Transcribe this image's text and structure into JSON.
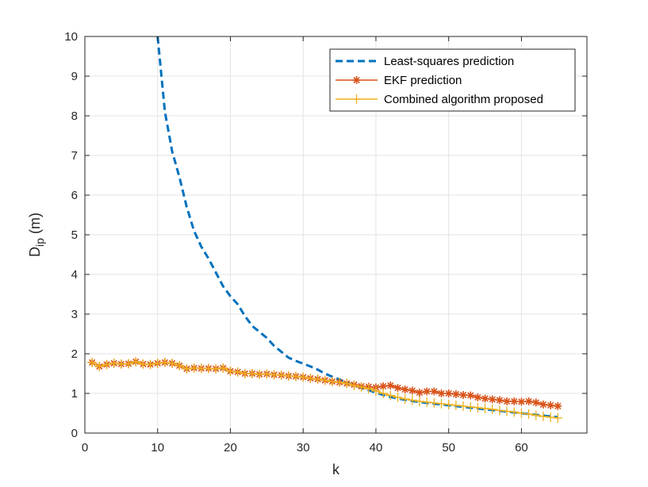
{
  "chart_data": {
    "type": "line",
    "title": "",
    "xlabel": "k",
    "ylabel": {
      "main": "D",
      "sub": "ip",
      "unit": " (m)"
    },
    "xlim": [
      0,
      69
    ],
    "ylim": [
      0,
      10
    ],
    "xticks": [
      0,
      10,
      20,
      30,
      40,
      50,
      60
    ],
    "yticks": [
      0,
      1,
      2,
      3,
      4,
      5,
      6,
      7,
      8,
      9,
      10
    ],
    "grid": true,
    "legend_position": "top-right",
    "series": [
      {
        "name": "Least-squares prediction",
        "color": "#0072BD",
        "line_style": "dashed",
        "marker": "none",
        "x": [
          10,
          11,
          12,
          13,
          14,
          15,
          16,
          17,
          18,
          19,
          20,
          21,
          22,
          23,
          24,
          25,
          26,
          27,
          28,
          29,
          30,
          31,
          32,
          33,
          34,
          35,
          36,
          37,
          38,
          39,
          40,
          41,
          42,
          43,
          44,
          45,
          46,
          47,
          48,
          49,
          50,
          51,
          52,
          53,
          54,
          55,
          56,
          57,
          58,
          59,
          60,
          61,
          62,
          63,
          64,
          65
        ],
        "y": [
          10.0,
          8.1,
          7.1,
          6.45,
          5.7,
          5.1,
          4.7,
          4.4,
          4.05,
          3.7,
          3.45,
          3.25,
          2.95,
          2.7,
          2.55,
          2.4,
          2.2,
          2.05,
          1.9,
          1.82,
          1.75,
          1.68,
          1.6,
          1.5,
          1.42,
          1.35,
          1.28,
          1.2,
          1.14,
          1.08,
          1.02,
          0.96,
          0.91,
          0.87,
          0.84,
          0.81,
          0.78,
          0.76,
          0.74,
          0.72,
          0.7,
          0.68,
          0.66,
          0.64,
          0.62,
          0.6,
          0.58,
          0.56,
          0.54,
          0.52,
          0.5,
          0.48,
          0.46,
          0.44,
          0.42,
          0.4
        ]
      },
      {
        "name": "EKF prediction",
        "color": "#D95319",
        "line_style": "solid",
        "marker": "asterisk",
        "x": [
          1,
          2,
          3,
          4,
          5,
          6,
          7,
          8,
          9,
          10,
          11,
          12,
          13,
          14,
          15,
          16,
          17,
          18,
          19,
          20,
          21,
          22,
          23,
          24,
          25,
          26,
          27,
          28,
          29,
          30,
          31,
          32,
          33,
          34,
          35,
          36,
          37,
          38,
          39,
          40,
          41,
          42,
          43,
          44,
          45,
          46,
          47,
          48,
          49,
          50,
          51,
          52,
          53,
          54,
          55,
          56,
          57,
          58,
          59,
          60,
          61,
          62,
          63,
          64,
          65
        ],
        "y": [
          1.78,
          1.68,
          1.73,
          1.76,
          1.74,
          1.75,
          1.8,
          1.74,
          1.73,
          1.76,
          1.78,
          1.76,
          1.7,
          1.62,
          1.64,
          1.63,
          1.63,
          1.62,
          1.64,
          1.56,
          1.54,
          1.5,
          1.5,
          1.48,
          1.49,
          1.47,
          1.46,
          1.44,
          1.43,
          1.41,
          1.38,
          1.36,
          1.33,
          1.3,
          1.28,
          1.25,
          1.22,
          1.18,
          1.17,
          1.15,
          1.18,
          1.2,
          1.14,
          1.1,
          1.07,
          1.02,
          1.05,
          1.05,
          1.0,
          1.0,
          0.98,
          0.96,
          0.95,
          0.9,
          0.87,
          0.85,
          0.83,
          0.8,
          0.8,
          0.79,
          0.8,
          0.77,
          0.72,
          0.7,
          0.68
        ]
      },
      {
        "name": "Combined algorithm proposed",
        "color": "#EDB120",
        "line_style": "solid",
        "marker": "plus",
        "x": [
          1,
          2,
          3,
          4,
          5,
          6,
          7,
          8,
          9,
          10,
          11,
          12,
          13,
          14,
          15,
          16,
          17,
          18,
          19,
          20,
          21,
          22,
          23,
          24,
          25,
          26,
          27,
          28,
          29,
          30,
          31,
          32,
          33,
          34,
          35,
          36,
          37,
          38,
          39,
          40,
          41,
          42,
          43,
          44,
          45,
          46,
          47,
          48,
          49,
          50,
          51,
          52,
          53,
          54,
          55,
          56,
          57,
          58,
          59,
          60,
          61,
          62,
          63,
          64,
          65
        ],
        "y": [
          1.78,
          1.68,
          1.73,
          1.76,
          1.74,
          1.75,
          1.8,
          1.74,
          1.73,
          1.76,
          1.78,
          1.76,
          1.7,
          1.62,
          1.64,
          1.63,
          1.63,
          1.62,
          1.64,
          1.56,
          1.54,
          1.5,
          1.5,
          1.48,
          1.49,
          1.47,
          1.46,
          1.44,
          1.43,
          1.41,
          1.38,
          1.36,
          1.33,
          1.3,
          1.28,
          1.25,
          1.2,
          1.16,
          1.12,
          1.06,
          1.0,
          0.95,
          0.9,
          0.86,
          0.83,
          0.8,
          0.78,
          0.76,
          0.74,
          0.72,
          0.7,
          0.68,
          0.66,
          0.64,
          0.62,
          0.6,
          0.57,
          0.55,
          0.53,
          0.5,
          0.48,
          0.45,
          0.42,
          0.4,
          0.38
        ]
      }
    ]
  }
}
